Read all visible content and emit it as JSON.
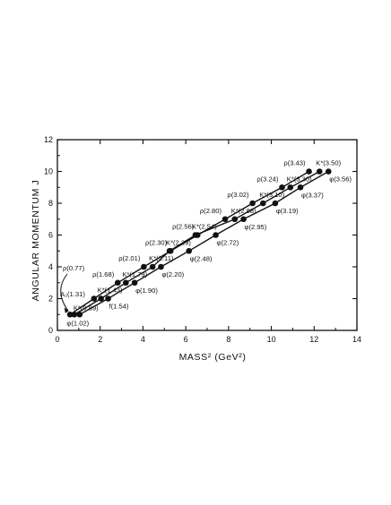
{
  "chart_data": {
    "type": "scatter",
    "title": "",
    "xlabel": "MASS² (GeV²)",
    "ylabel": "ANGULAR MOMENTUM J",
    "xlim": [
      0,
      14
    ],
    "ylim": [
      0,
      12
    ],
    "xticks": [
      0,
      2,
      4,
      6,
      8,
      10,
      12,
      14
    ],
    "yticks": [
      0,
      2,
      4,
      6,
      8,
      10,
      12
    ],
    "grid": false,
    "legend": "none",
    "series": [
      {
        "color": "#111111",
        "points": [
          {
            "x": 0.59,
            "y": 1,
            "label": "ρ(0.77)"
          },
          {
            "x": 1.71,
            "y": 2,
            "label": "A₂(1.31)"
          },
          {
            "x": 2.82,
            "y": 3,
            "label": "ρ(1.68)"
          },
          {
            "x": 4.04,
            "y": 4,
            "label": "ρ(2.01)"
          },
          {
            "x": 5.29,
            "y": 5,
            "label": "ρ(2.30)"
          },
          {
            "x": 6.55,
            "y": 6,
            "label": "ρ(2.56)"
          },
          {
            "x": 7.84,
            "y": 7,
            "label": "ρ(2.80)"
          },
          {
            "x": 9.12,
            "y": 8,
            "label": "ρ(3.02)"
          },
          {
            "x": 10.5,
            "y": 9,
            "label": "ρ(3.24)"
          },
          {
            "x": 11.76,
            "y": 10,
            "label": "ρ(3.43)"
          }
        ]
      },
      {
        "color": "#111111",
        "points": [
          {
            "x": 0.79,
            "y": 1,
            "label": "K*(0.89)"
          },
          {
            "x": 2.04,
            "y": 2,
            "label": "K*(1.43)"
          },
          {
            "x": 3.2,
            "y": 3,
            "label": "K*(1.79)"
          },
          {
            "x": 4.45,
            "y": 4,
            "label": "K*(2.11)"
          },
          {
            "x": 5.24,
            "y": 5,
            "label": "K*(2.29)"
          },
          {
            "x": 6.45,
            "y": 6,
            "label": "K*(2.54)"
          },
          {
            "x": 8.29,
            "y": 7,
            "label": "K*(2.88)"
          },
          {
            "x": 9.61,
            "y": 8,
            "label": "K*(3.10)"
          },
          {
            "x": 10.89,
            "y": 9,
            "label": "K*(3.30)"
          },
          {
            "x": 12.25,
            "y": 10,
            "label": "K*(3.50)"
          }
        ]
      },
      {
        "color": "#111111",
        "points": [
          {
            "x": 1.04,
            "y": 1,
            "label": "φ(1.02)"
          },
          {
            "x": 2.37,
            "y": 2,
            "label": "f(1.54)"
          },
          {
            "x": 3.61,
            "y": 3,
            "label": "φ(1.90)"
          },
          {
            "x": 4.84,
            "y": 4,
            "label": "φ(2.20)"
          },
          {
            "x": 6.15,
            "y": 5,
            "label": "φ(2.48)"
          },
          {
            "x": 7.4,
            "y": 6,
            "label": "φ(2.72)"
          },
          {
            "x": 8.7,
            "y": 7,
            "label": "φ(2.95)"
          },
          {
            "x": 10.18,
            "y": 8,
            "label": "φ(3.19)"
          },
          {
            "x": 11.36,
            "y": 9,
            "label": "φ(3.37)"
          },
          {
            "x": 12.67,
            "y": 10,
            "label": "φ(3.56)"
          }
        ]
      }
    ]
  }
}
